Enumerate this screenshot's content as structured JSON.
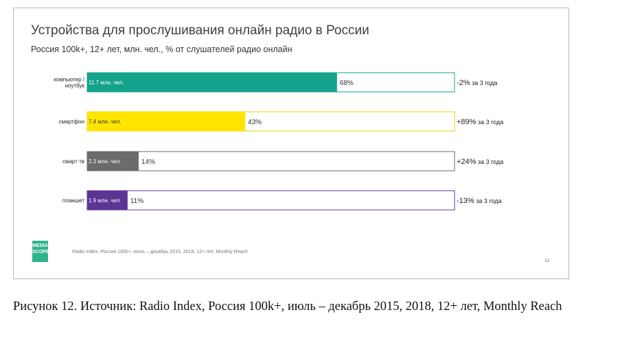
{
  "slide": {
    "title": "Устройства для прослушивания онлайн радио в России",
    "subtitle": "Россия 100k+, 12+ лет, млн. чел., % от слушателей радио онлайн",
    "logo_lines": [
      "MEDIA",
      "SCOPE"
    ],
    "source": "Radio Index, Россия 100k+, июль – декабрь 2015, 2018, 12+ лет, Monthly Reach",
    "page_number": "11"
  },
  "chart_data": {
    "type": "bar",
    "orientation": "horizontal",
    "title": "Устройства для прослушивания онлайн радио в России",
    "subtitle": "Россия 100k+, 12+ лет, млн. чел., % от слушателей радио онлайн",
    "xlim": [
      0,
      100
    ],
    "grid": false,
    "categories": [
      {
        "label_lines": [
          "компьютер /",
          "ноутбук"
        ],
        "value_mln": "11.7 млн. чел.",
        "percent": 68,
        "percent_label": "68%",
        "change_main": "-2%",
        "change_suffix": " за 3 года",
        "color": "#13a38b",
        "border": "#13a38b"
      },
      {
        "label_lines": [
          "смартфон"
        ],
        "value_mln": "7.4 млн. чел.",
        "percent": 43,
        "percent_label": "43%",
        "change_main": "+89%",
        "change_suffix": " за 3 года",
        "color": "#ffe500",
        "border": "#e6d200"
      },
      {
        "label_lines": [
          "смарт тв"
        ],
        "value_mln": "2.3 млн. чел.",
        "percent": 14,
        "percent_label": "14%",
        "change_main": "+24%",
        "change_suffix": " за 3 года",
        "color": "#6b6b6b",
        "border": "#6b6b6b"
      },
      {
        "label_lines": [
          "планшет"
        ],
        "value_mln": "1.9 млн. чел.",
        "percent": 11,
        "percent_label": "11%",
        "change_main": "-13%",
        "change_suffix": " за 3 года",
        "color": "#5c3594",
        "border": "#5c3594"
      }
    ]
  },
  "caption": "Рисунок 12.  Источник: Radio Index, Россия 100k+, июль – декабрь 2015, 2018, 12+ лет, Monthly Reach"
}
